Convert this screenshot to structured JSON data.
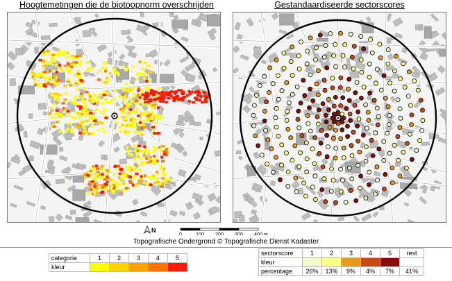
{
  "titles": {
    "left": "Hoogtemetingen die de biotoopnorm overschrijden",
    "right": "Gestandaardiseerde sectorscores"
  },
  "scale_bar": {
    "north_label": "N",
    "ticks": [
      "0",
      "100",
      "200",
      "300",
      "400"
    ],
    "unit": "m"
  },
  "credit": "Topografische Ondergrond © Topografische Dienst Kadaster",
  "legend_left": {
    "row1_label": "categorie",
    "row2_label": "kleur",
    "categories": [
      "1",
      "2",
      "3",
      "4",
      "5"
    ],
    "colors": [
      "#ffff00",
      "#ffd200",
      "#ffa200",
      "#ff7000",
      "#ff1a00"
    ]
  },
  "legend_right": {
    "row1_label": "sectorscore",
    "row2_label": "kleur",
    "row3_label": "percentage",
    "scores": [
      "1",
      "2",
      "3",
      "4",
      "5",
      "rest"
    ],
    "colors": [
      "#f2f8c8",
      "#ffff88",
      "#e89a1a",
      "#c84a14",
      "#8a0a0a",
      "#ffffff"
    ],
    "percentages": [
      "26%",
      "13%",
      "9%",
      "4%",
      "7%",
      "41%"
    ]
  }
}
